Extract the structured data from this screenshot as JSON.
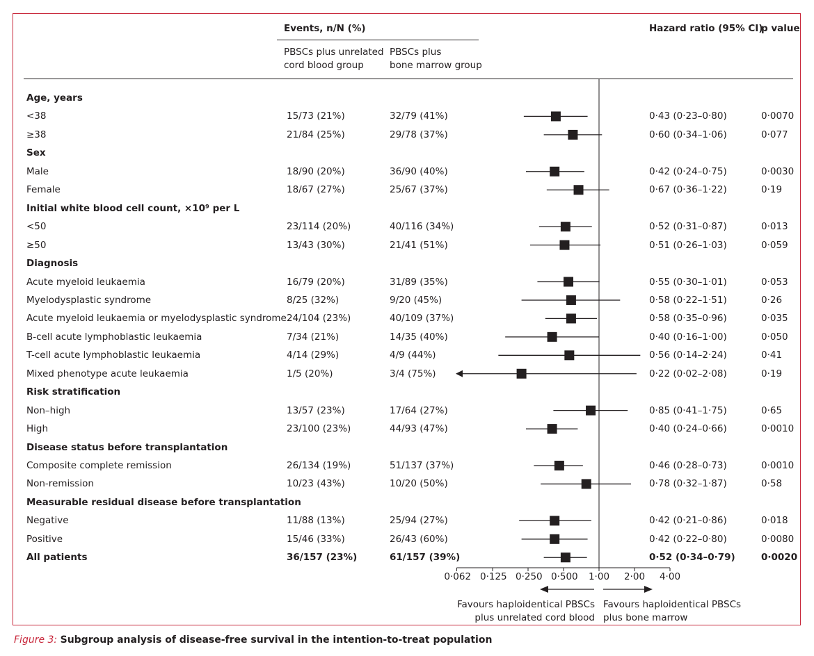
{
  "header": {
    "events_title": "Events, n/N (%)",
    "group1": [
      "PBSCs plus unrelated",
      "cord blood group"
    ],
    "group2": [
      "PBSCs plus",
      "bone marrow group"
    ],
    "hr_title": "Hazard ratio (95% CI)",
    "p_title": "p value"
  },
  "chart_data": {
    "type": "forest",
    "scale": "log2",
    "xlim": [
      0.062,
      4.0
    ],
    "reference_line": 1.0,
    "ticks": [
      0.062,
      0.125,
      0.25,
      0.5,
      1.0,
      2.0,
      4.0
    ],
    "tick_labels": [
      "0·062",
      "0·125",
      "0·250",
      "0·500",
      "1·00",
      "2·00",
      "4·00"
    ],
    "favours_left": [
      "Favours haploidentical PBSCs",
      "plus unrelated cord blood"
    ],
    "favours_right": [
      "Favours haploidentical PBSCs",
      "plus bone marrow"
    ],
    "rows": [
      {
        "kind": "header",
        "label": "Age, years"
      },
      {
        "kind": "data",
        "label": "<38",
        "g1": "15/73 (21%)",
        "g2": "32/79 (41%)",
        "hr": 0.43,
        "lo": 0.23,
        "hi": 0.8,
        "hr_text": "0·43 (0·23–0·80)",
        "p": "0·0070"
      },
      {
        "kind": "data",
        "label": "≥38",
        "g1": "21/84 (25%)",
        "g2": "29/78 (37%)",
        "hr": 0.6,
        "lo": 0.34,
        "hi": 1.06,
        "hr_text": "0·60 (0·34–1·06)",
        "p": "0·077"
      },
      {
        "kind": "header",
        "label": "Sex"
      },
      {
        "kind": "data",
        "label": "Male",
        "g1": "18/90 (20%)",
        "g2": "36/90 (40%)",
        "hr": 0.42,
        "lo": 0.24,
        "hi": 0.75,
        "hr_text": "0·42 (0·24–0·75)",
        "p": "0·0030"
      },
      {
        "kind": "data",
        "label": "Female",
        "g1": "18/67 (27%)",
        "g2": "25/67 (37%)",
        "hr": 0.67,
        "lo": 0.36,
        "hi": 1.22,
        "hr_text": "0·67 (0·36–1·22)",
        "p": "0·19"
      },
      {
        "kind": "header",
        "label": "Initial white blood cell count, ×10⁹ per L"
      },
      {
        "kind": "data",
        "label": "<50",
        "g1": "23/114 (20%)",
        "g2": "40/116 (34%)",
        "hr": 0.52,
        "lo": 0.31,
        "hi": 0.87,
        "hr_text": "0·52 (0·31–0·87)",
        "p": "0·013"
      },
      {
        "kind": "data",
        "label": "≥50",
        "g1": "13/43 (30%)",
        "g2": "21/41 (51%)",
        "hr": 0.51,
        "lo": 0.26,
        "hi": 1.03,
        "hr_text": "0·51 (0·26–1·03)",
        "p": "0·059"
      },
      {
        "kind": "header",
        "label": "Diagnosis"
      },
      {
        "kind": "data",
        "label": "Acute myeloid leukaemia",
        "g1": "16/79 (20%)",
        "g2": "31/89 (35%)",
        "hr": 0.55,
        "lo": 0.3,
        "hi": 1.01,
        "hr_text": "0·55 (0·30–1·01)",
        "p": "0·053"
      },
      {
        "kind": "data",
        "label": "Myelodysplastic syndrome",
        "g1": "8/25 (32%)",
        "g2": "9/20 (45%)",
        "hr": 0.58,
        "lo": 0.22,
        "hi": 1.51,
        "hr_text": "0·58 (0·22–1·51)",
        "p": "0·26"
      },
      {
        "kind": "data",
        "label": "Acute myeloid leukaemia or myelodysplastic syndrome",
        "g1": "24/104 (23%)",
        "g2": "40/109 (37%)",
        "hr": 0.58,
        "lo": 0.35,
        "hi": 0.96,
        "hr_text": "0·58 (0·35–0·96)",
        "p": "0·035"
      },
      {
        "kind": "data",
        "label": "B-cell acute lymphoblastic leukaemia",
        "g1": "7/34 (21%)",
        "g2": "14/35 (40%)",
        "hr": 0.4,
        "lo": 0.16,
        "hi": 1.0,
        "hr_text": "0·40 (0·16–1·00)",
        "p": "0·050"
      },
      {
        "kind": "data",
        "label": "T-cell acute lymphoblastic leukaemia",
        "g1": "4/14 (29%)",
        "g2": "4/9 (44%)",
        "hr": 0.56,
        "lo": 0.14,
        "hi": 2.24,
        "hr_text": "0·56 (0·14–2·24)",
        "p": "0·41"
      },
      {
        "kind": "data",
        "label": "Mixed phenotype acute leukaemia",
        "g1": "1/5 (20%)",
        "g2": "3/4 (75%)",
        "hr": 0.22,
        "lo": 0.02,
        "hi": 2.08,
        "hr_text": "0·22 (0·02–2·08)",
        "p": "0·19",
        "arrow_left": true
      },
      {
        "kind": "header",
        "label": "Risk stratification"
      },
      {
        "kind": "data",
        "label": "Non–high",
        "g1": "13/57 (23%)",
        "g2": "17/64 (27%)",
        "hr": 0.85,
        "lo": 0.41,
        "hi": 1.75,
        "hr_text": "0·85 (0·41–1·75)",
        "p": "0·65"
      },
      {
        "kind": "data",
        "label": "High",
        "g1": "23/100 (23%)",
        "g2": "44/93 (47%)",
        "hr": 0.4,
        "lo": 0.24,
        "hi": 0.66,
        "hr_text": "0·40 (0·24–0·66)",
        "p": "0·0010"
      },
      {
        "kind": "header",
        "label": "Disease status before transplantation"
      },
      {
        "kind": "data",
        "label": "Composite complete remission",
        "g1": "26/134 (19%)",
        "g2": "51/137 (37%)",
        "hr": 0.46,
        "lo": 0.28,
        "hi": 0.73,
        "hr_text": "0·46 (0·28–0·73)",
        "p": "0·0010"
      },
      {
        "kind": "data",
        "label": "Non-remission",
        "g1": "10/23 (43%)",
        "g2": "10/20 (50%)",
        "hr": 0.78,
        "lo": 0.32,
        "hi": 1.87,
        "hr_text": "0·78 (0·32–1·87)",
        "p": "0·58"
      },
      {
        "kind": "header",
        "label": "Measurable residual disease before transplantation"
      },
      {
        "kind": "data",
        "label": "Negative",
        "g1": "11/88 (13%)",
        "g2": "25/94 (27%)",
        "hr": 0.42,
        "lo": 0.21,
        "hi": 0.86,
        "hr_text": "0·42 (0·21–0·86)",
        "p": "0·018"
      },
      {
        "kind": "data",
        "label": "Positive",
        "g1": "15/46 (33%)",
        "g2": "26/43 (60%)",
        "hr": 0.42,
        "lo": 0.22,
        "hi": 0.8,
        "hr_text": "0·42 (0·22–0·80)",
        "p": "0·0080"
      },
      {
        "kind": "total",
        "label": "All patients",
        "g1": "36/157 (23%)",
        "g2": "61/157 (39%)",
        "hr": 0.52,
        "lo": 0.34,
        "hi": 0.79,
        "hr_text": "0·52 (0·34–0·79)",
        "p": "0·0020"
      }
    ]
  },
  "caption": {
    "figure_label": "Figure 3:",
    "text": "Subgroup analysis of disease-free survival in the intention-to-treat population"
  },
  "colors": {
    "border": "#c8283c",
    "ink": "#231f20"
  }
}
